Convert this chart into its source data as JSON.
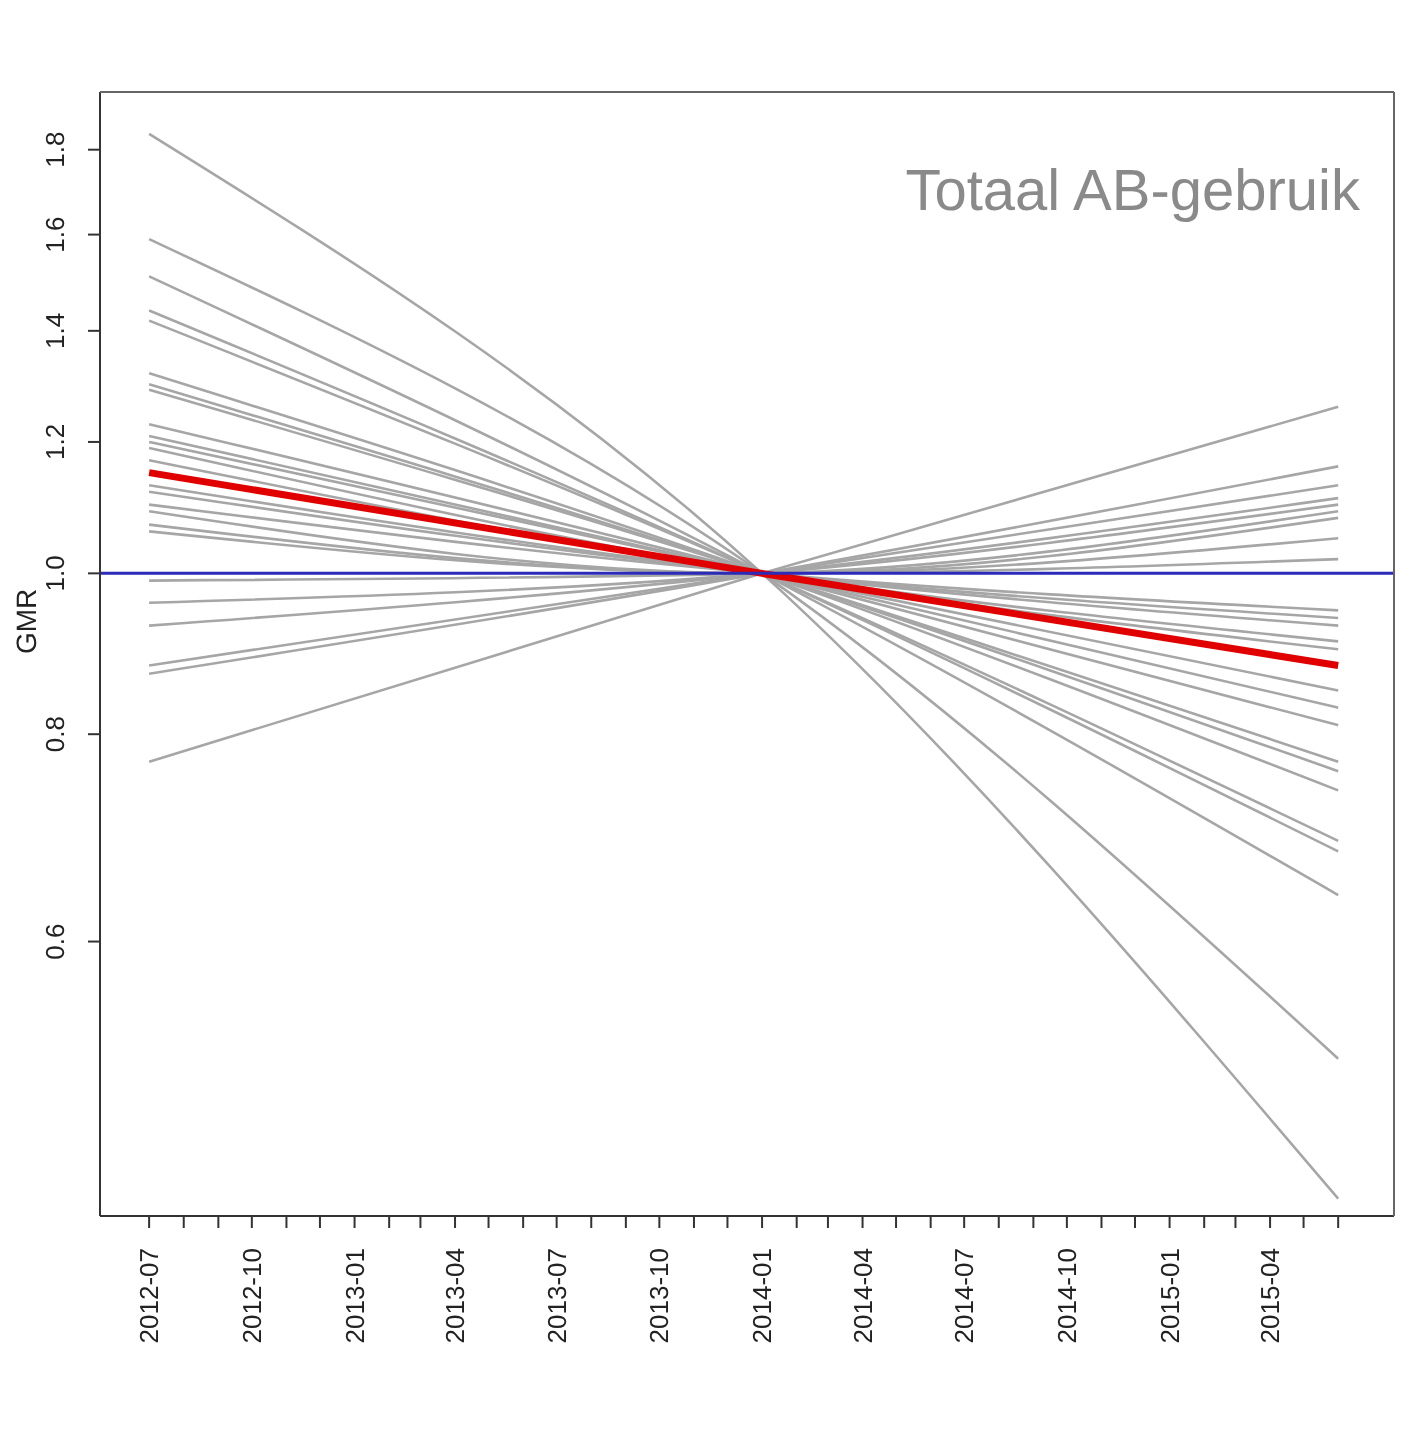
{
  "chart_data": {
    "type": "line",
    "annotations": [
      "Totaal AB-gebruik"
    ],
    "ylabel": "GMR",
    "x": [
      "2012-07",
      "2014-01",
      "2015-06"
    ],
    "xlim": [
      "2012-05-18",
      "2015-07-21"
    ],
    "xticks": [
      {
        "value": "2012-07",
        "label": "2012-07"
      },
      {
        "value": "2012-08",
        "label": null
      },
      {
        "value": "2012-09",
        "label": null
      },
      {
        "value": "2012-10",
        "label": "2012-10"
      },
      {
        "value": "2012-11",
        "label": null
      },
      {
        "value": "2012-12",
        "label": null
      },
      {
        "value": "2013-01",
        "label": "2013-01"
      },
      {
        "value": "2013-02",
        "label": null
      },
      {
        "value": "2013-03",
        "label": null
      },
      {
        "value": "2013-04",
        "label": "2013-04"
      },
      {
        "value": "2013-05",
        "label": null
      },
      {
        "value": "2013-06",
        "label": null
      },
      {
        "value": "2013-07",
        "label": "2013-07"
      },
      {
        "value": "2013-08",
        "label": null
      },
      {
        "value": "2013-09",
        "label": null
      },
      {
        "value": "2013-10",
        "label": "2013-10"
      },
      {
        "value": "2013-11",
        "label": null
      },
      {
        "value": "2013-12",
        "label": null
      },
      {
        "value": "2014-01",
        "label": "2014-01"
      },
      {
        "value": "2014-02",
        "label": null
      },
      {
        "value": "2014-03",
        "label": null
      },
      {
        "value": "2014-04",
        "label": "2014-04"
      },
      {
        "value": "2014-05",
        "label": null
      },
      {
        "value": "2014-06",
        "label": null
      },
      {
        "value": "2014-07",
        "label": "2014-07"
      },
      {
        "value": "2014-08",
        "label": null
      },
      {
        "value": "2014-09",
        "label": null
      },
      {
        "value": "2014-10",
        "label": "2014-10"
      },
      {
        "value": "2014-11",
        "label": null
      },
      {
        "value": "2014-12",
        "label": null
      },
      {
        "value": "2015-01",
        "label": "2015-01"
      },
      {
        "value": "2015-02",
        "label": null
      },
      {
        "value": "2015-03",
        "label": null
      },
      {
        "value": "2015-04",
        "label": "2015-04"
      },
      {
        "value": "2015-05",
        "label": null
      },
      {
        "value": "2015-06",
        "label": null
      }
    ],
    "ylim": [
      0.41,
      1.95
    ],
    "yticks": [
      0.6,
      0.8,
      {
        "value": 1,
        "label": "1.0"
      },
      1.2,
      1.4,
      1.6,
      1.8
    ],
    "log": "y",
    "legend": false,
    "marker": "none",
    "line_style": "solid",
    "ref_lines": [
      {
        "axis": "y",
        "value": 1,
        "label": null,
        "color": "#2b2bb8"
      }
    ],
    "series": [
      {
        "color": "#a6a6a6",
        "values": [
          1.84,
          1,
          0.42
        ]
      },
      {
        "color": "#a6a6a6",
        "values": [
          1.59,
          1,
          0.51
        ]
      },
      {
        "color": "#a6a6a6",
        "values": [
          1.51,
          1,
          0.64
        ]
      },
      {
        "color": "#a6a6a6",
        "values": [
          1.44,
          1,
          0.68
        ]
      },
      {
        "color": "#a6a6a6",
        "values": [
          1.42,
          1,
          0.69
        ]
      },
      {
        "color": "#a6a6a6",
        "values": [
          1.32,
          1,
          0.74
        ]
      },
      {
        "color": "#a6a6a6",
        "values": [
          1.3,
          1,
          0.76
        ]
      },
      {
        "color": "#a6a6a6",
        "values": [
          1.29,
          1,
          0.77
        ]
      },
      {
        "color": "#a6a6a6",
        "values": [
          1.23,
          1,
          0.81
        ]
      },
      {
        "color": "#a6a6a6",
        "values": [
          1.21,
          1,
          0.83
        ]
      },
      {
        "color": "#a6a6a6",
        "values": [
          1.2,
          1,
          0.85
        ]
      },
      {
        "color": "#a6a6a6",
        "values": [
          1.19,
          1,
          0.9
        ]
      },
      {
        "color": "#a6a6a6",
        "values": [
          1.17,
          1,
          0.91
        ]
      },
      {
        "color": "#a6a6a6",
        "values": [
          1.13,
          1,
          0.93
        ]
      },
      {
        "color": "#a6a6a6",
        "values": [
          1.12,
          1,
          0.94
        ]
      },
      {
        "color": "#a6a6a6",
        "values": [
          1.1,
          1,
          0.95
        ]
      },
      {
        "color": "#a6a6a6",
        "values": [
          1.09,
          1,
          1.02
        ]
      },
      {
        "color": "#a6a6a6",
        "values": [
          1.07,
          1,
          1.05
        ]
      },
      {
        "color": "#a6a6a6",
        "values": [
          1.06,
          1,
          1.08
        ]
      },
      {
        "color": "#a6a6a6",
        "values": [
          0.99,
          1,
          1.09
        ]
      },
      {
        "color": "#a6a6a6",
        "values": [
          0.96,
          1,
          1.1
        ]
      },
      {
        "color": "#a6a6a6",
        "values": [
          0.93,
          1,
          1.11
        ]
      },
      {
        "color": "#a6a6a6",
        "values": [
          0.88,
          1,
          1.13
        ]
      },
      {
        "color": "#a6a6a6",
        "values": [
          0.87,
          1,
          1.16
        ]
      },
      {
        "color": "#a6a6a6",
        "values": [
          0.77,
          1,
          1.26
        ]
      },
      {
        "color": "#e00000",
        "values": [
          1.15,
          1,
          0.88
        ]
      }
    ]
  }
}
